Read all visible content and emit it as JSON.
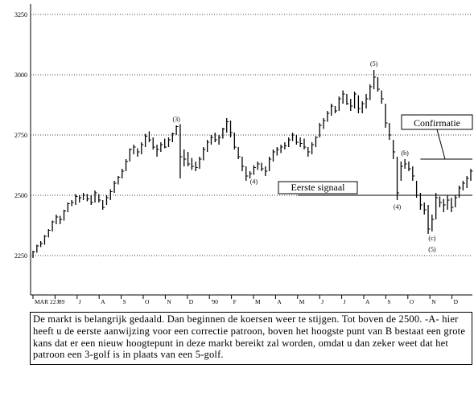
{
  "chart_data": {
    "type": "bar",
    "subtype": "price-bar (high/low/close) chart",
    "y_ticks": [
      2250,
      2500,
      2750,
      3000,
      3250
    ],
    "ylim": [
      2200,
      3300
    ],
    "x_tick_labels": [
      "MAR 22 '89",
      "J",
      "J",
      "A",
      "S",
      "O",
      "N",
      "D",
      "'90",
      "F",
      "M",
      "A",
      "M",
      "J",
      "J",
      "A",
      "S",
      "O",
      "N",
      "D"
    ],
    "grid": "horizontal dotted",
    "price_bars": [
      {
        "high": 2270,
        "low": 2240,
        "close": 2265
      },
      {
        "high": 2295,
        "low": 2262,
        "close": 2290
      },
      {
        "high": 2310,
        "low": 2285,
        "close": 2300
      },
      {
        "high": 2335,
        "low": 2295,
        "close": 2330
      },
      {
        "high": 2360,
        "low": 2325,
        "close": 2355
      },
      {
        "high": 2395,
        "low": 2350,
        "close": 2390
      },
      {
        "high": 2420,
        "low": 2380,
        "close": 2410
      },
      {
        "high": 2415,
        "low": 2380,
        "close": 2400
      },
      {
        "high": 2440,
        "low": 2395,
        "close": 2435
      },
      {
        "high": 2470,
        "low": 2430,
        "close": 2465
      },
      {
        "high": 2480,
        "low": 2455,
        "close": 2470
      },
      {
        "high": 2505,
        "low": 2460,
        "close": 2495
      },
      {
        "high": 2500,
        "low": 2470,
        "close": 2490
      },
      {
        "high": 2510,
        "low": 2480,
        "close": 2500
      },
      {
        "high": 2505,
        "low": 2475,
        "close": 2485
      },
      {
        "high": 2500,
        "low": 2460,
        "close": 2470
      },
      {
        "high": 2520,
        "low": 2470,
        "close": 2510
      },
      {
        "high": 2505,
        "low": 2470,
        "close": 2480
      },
      {
        "high": 2480,
        "low": 2440,
        "close": 2450
      },
      {
        "high": 2500,
        "low": 2460,
        "close": 2490
      },
      {
        "high": 2525,
        "low": 2480,
        "close": 2515
      },
      {
        "high": 2560,
        "low": 2510,
        "close": 2550
      },
      {
        "high": 2580,
        "low": 2545,
        "close": 2575
      },
      {
        "high": 2610,
        "low": 2570,
        "close": 2600
      },
      {
        "high": 2650,
        "low": 2600,
        "close": 2640
      },
      {
        "high": 2695,
        "low": 2640,
        "close": 2690
      },
      {
        "high": 2710,
        "low": 2670,
        "close": 2700
      },
      {
        "high": 2695,
        "low": 2660,
        "close": 2680
      },
      {
        "high": 2720,
        "low": 2670,
        "close": 2710
      },
      {
        "high": 2755,
        "low": 2700,
        "close": 2745
      },
      {
        "high": 2765,
        "low": 2720,
        "close": 2730
      },
      {
        "high": 2740,
        "low": 2690,
        "close": 2700
      },
      {
        "high": 2710,
        "low": 2660,
        "close": 2690
      },
      {
        "high": 2720,
        "low": 2680,
        "close": 2710
      },
      {
        "high": 2735,
        "low": 2695,
        "close": 2700
      },
      {
        "high": 2740,
        "low": 2700,
        "close": 2730
      },
      {
        "high": 2760,
        "low": 2720,
        "close": 2755
      },
      {
        "high": 2790,
        "low": 2750,
        "close": 2785
      },
      {
        "high": 2795,
        "low": 2570,
        "close": 2660
      },
      {
        "high": 2690,
        "low": 2620,
        "close": 2650
      },
      {
        "high": 2680,
        "low": 2620,
        "close": 2630
      },
      {
        "high": 2655,
        "low": 2605,
        "close": 2620
      },
      {
        "high": 2640,
        "low": 2600,
        "close": 2615
      },
      {
        "high": 2660,
        "low": 2610,
        "close": 2650
      },
      {
        "high": 2700,
        "low": 2645,
        "close": 2690
      },
      {
        "high": 2730,
        "low": 2680,
        "close": 2720
      },
      {
        "high": 2750,
        "low": 2710,
        "close": 2740
      },
      {
        "high": 2760,
        "low": 2720,
        "close": 2730
      },
      {
        "high": 2750,
        "low": 2710,
        "close": 2740
      },
      {
        "high": 2780,
        "low": 2735,
        "close": 2775
      },
      {
        "high": 2820,
        "low": 2760,
        "close": 2805
      },
      {
        "high": 2810,
        "low": 2740,
        "close": 2760
      },
      {
        "high": 2760,
        "low": 2690,
        "close": 2700
      },
      {
        "high": 2700,
        "low": 2650,
        "close": 2660
      },
      {
        "high": 2660,
        "low": 2600,
        "close": 2620
      },
      {
        "high": 2620,
        "low": 2560,
        "close": 2580
      },
      {
        "high": 2600,
        "low": 2570,
        "close": 2590
      },
      {
        "high": 2625,
        "low": 2585,
        "close": 2615
      },
      {
        "high": 2640,
        "low": 2605,
        "close": 2630
      },
      {
        "high": 2635,
        "low": 2600,
        "close": 2610
      },
      {
        "high": 2620,
        "low": 2580,
        "close": 2600
      },
      {
        "high": 2660,
        "low": 2600,
        "close": 2650
      },
      {
        "high": 2690,
        "low": 2640,
        "close": 2680
      },
      {
        "high": 2700,
        "low": 2665,
        "close": 2690
      },
      {
        "high": 2710,
        "low": 2675,
        "close": 2700
      },
      {
        "high": 2720,
        "low": 2690,
        "close": 2705
      },
      {
        "high": 2740,
        "low": 2700,
        "close": 2730
      },
      {
        "high": 2760,
        "low": 2725,
        "close": 2750
      },
      {
        "high": 2750,
        "low": 2710,
        "close": 2720
      },
      {
        "high": 2740,
        "low": 2700,
        "close": 2715
      },
      {
        "high": 2735,
        "low": 2690,
        "close": 2700
      },
      {
        "high": 2700,
        "low": 2660,
        "close": 2680
      },
      {
        "high": 2720,
        "low": 2670,
        "close": 2710
      },
      {
        "high": 2745,
        "low": 2700,
        "close": 2740
      },
      {
        "high": 2800,
        "low": 2740,
        "close": 2790
      },
      {
        "high": 2820,
        "low": 2775,
        "close": 2810
      },
      {
        "high": 2850,
        "low": 2805,
        "close": 2840
      },
      {
        "high": 2880,
        "low": 2830,
        "close": 2870
      },
      {
        "high": 2870,
        "low": 2840,
        "close": 2850
      },
      {
        "high": 2910,
        "low": 2850,
        "close": 2900
      },
      {
        "high": 2935,
        "low": 2880,
        "close": 2920
      },
      {
        "high": 2920,
        "low": 2875,
        "close": 2880
      },
      {
        "high": 2900,
        "low": 2850,
        "close": 2870
      },
      {
        "high": 2930,
        "low": 2860,
        "close": 2920
      },
      {
        "high": 2915,
        "low": 2840,
        "close": 2860
      },
      {
        "high": 2890,
        "low": 2840,
        "close": 2880
      },
      {
        "high": 2920,
        "low": 2860,
        "close": 2900
      },
      {
        "high": 2960,
        "low": 2895,
        "close": 2950
      },
      {
        "high": 3020,
        "low": 2940,
        "close": 2990
      },
      {
        "high": 2990,
        "low": 2930,
        "close": 2940
      },
      {
        "high": 2935,
        "low": 2880,
        "close": 2900
      },
      {
        "high": 2880,
        "low": 2780,
        "close": 2800
      },
      {
        "high": 2800,
        "low": 2730,
        "close": 2750
      },
      {
        "high": 2730,
        "low": 2650,
        "close": 2680
      },
      {
        "high": 2660,
        "low": 2480,
        "close": 2510
      },
      {
        "high": 2640,
        "low": 2560,
        "close": 2620
      },
      {
        "high": 2650,
        "low": 2610,
        "close": 2630
      },
      {
        "high": 2640,
        "low": 2600,
        "close": 2610
      },
      {
        "high": 2620,
        "low": 2560,
        "close": 2580
      },
      {
        "high": 2560,
        "low": 2490,
        "close": 2500
      },
      {
        "high": 2510,
        "low": 2440,
        "close": 2460
      },
      {
        "high": 2470,
        "low": 2420,
        "close": 2440
      },
      {
        "high": 2460,
        "low": 2340,
        "close": 2360
      },
      {
        "high": 2420,
        "low": 2350,
        "close": 2400
      },
      {
        "high": 2510,
        "low": 2400,
        "close": 2490
      },
      {
        "high": 2495,
        "low": 2450,
        "close": 2470
      },
      {
        "high": 2485,
        "low": 2430,
        "close": 2460
      },
      {
        "high": 2500,
        "low": 2440,
        "close": 2480
      },
      {
        "high": 2490,
        "low": 2430,
        "close": 2450
      },
      {
        "high": 2500,
        "low": 2450,
        "close": 2490
      },
      {
        "high": 2540,
        "low": 2490,
        "close": 2530
      },
      {
        "high": 2560,
        "low": 2520,
        "close": 2550
      },
      {
        "high": 2580,
        "low": 2530,
        "close": 2570
      },
      {
        "high": 2610,
        "low": 2560,
        "close": 2600
      }
    ],
    "horizontal_lines": [
      {
        "y": 2500,
        "x_start_bar": 70,
        "x_end_bar": 115
      },
      {
        "y": 2650,
        "x_start_bar": 100,
        "x_end_bar": 115
      }
    ],
    "annotations": [
      {
        "text": "(3)",
        "near_bar": 37
      },
      {
        "text": "(4)",
        "near_bar": 57
      },
      {
        "text": "(5)",
        "near_bar": 88
      },
      {
        "text": "(4)",
        "near_bar": 94
      },
      {
        "text": "(b)",
        "near_bar": 96
      },
      {
        "text": "(c)",
        "near_bar": 103
      },
      {
        "text": "(5)",
        "near_bar": 103
      }
    ],
    "labels": [
      {
        "text": "Eerste signaal"
      },
      {
        "text": "Confirmatie"
      }
    ]
  },
  "caption": "De markt is belangrijk gedaald. Dan beginnen de koersen weer te stijgen. Tot boven de 2500. -A- hier heeft u de eerste aanwijzing voor een correctie patroon, boven het hoogste punt van B bestaat een grote kans dat er een nieuw hoogtepunt in deze markt bereikt zal worden, omdat u dan zeker weet dat het patroon een 3-golf is in plaats van een 5-golf."
}
